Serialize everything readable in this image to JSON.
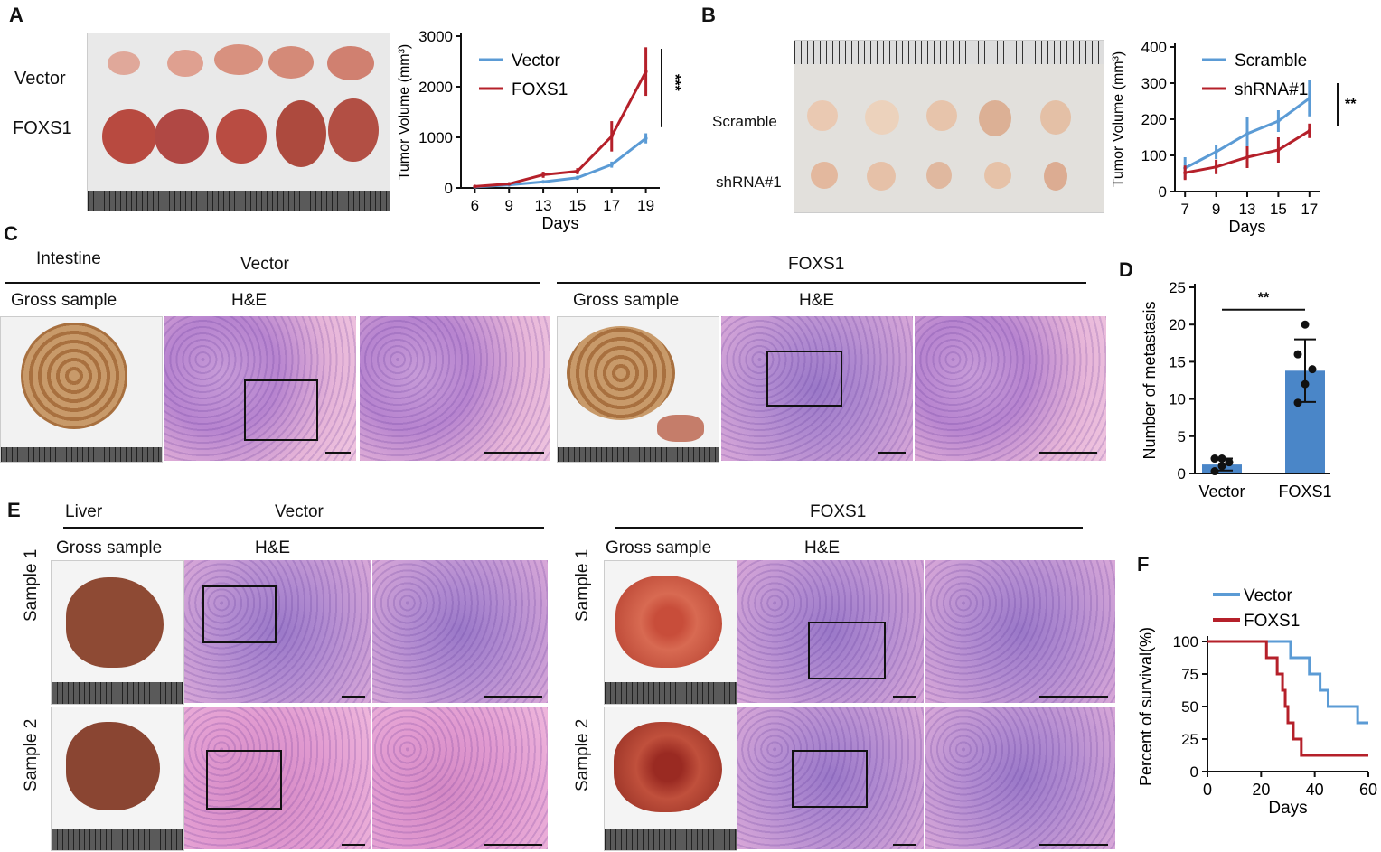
{
  "panels": {
    "A": {
      "label": "A",
      "row1": "Vector",
      "row2": "FOXS1"
    },
    "B": {
      "label": "B",
      "row1": "Scramble",
      "row2": "shRNA#1"
    },
    "C": {
      "label": "C",
      "organ": "Intestine",
      "group1": "Vector",
      "group2": "FOXS1",
      "gross": "Gross sample",
      "he": "H&E"
    },
    "D": {
      "label": "D"
    },
    "E": {
      "label": "E",
      "organ": "Liver",
      "group1": "Vector",
      "group2": "FOXS1",
      "gross": "Gross sample",
      "he": "H&E",
      "sample1": "Sample 1",
      "sample2": "Sample 2"
    },
    "F": {
      "label": "F"
    }
  },
  "colors": {
    "blue": "#5b9bd5",
    "red": "#b5202a",
    "bar_blue": "#4a86c8"
  },
  "chart_data": [
    {
      "id": "A",
      "type": "line",
      "ylabel": "Tumor Volume (mm³)",
      "xlabel": "Days",
      "x": [
        6,
        9,
        13,
        15,
        17,
        19
      ],
      "ylim": [
        0,
        3000
      ],
      "yticks": [
        0,
        1000,
        2000,
        3000
      ],
      "significance": "***",
      "series": [
        {
          "name": "Vector",
          "color": "#5b9bd5",
          "values": [
            20,
            60,
            120,
            200,
            460,
            980
          ],
          "err": [
            10,
            15,
            30,
            40,
            60,
            100
          ]
        },
        {
          "name": "FOXS1",
          "color": "#b5202a",
          "values": [
            30,
            80,
            260,
            330,
            1020,
            2300
          ],
          "err": [
            10,
            20,
            60,
            60,
            300,
            480
          ]
        }
      ]
    },
    {
      "id": "B",
      "type": "line",
      "ylabel": "Tumor Volume (mm³)",
      "xlabel": "Days",
      "x": [
        7,
        9,
        13,
        15,
        17
      ],
      "ylim": [
        0,
        400
      ],
      "yticks": [
        0,
        100,
        200,
        300,
        400
      ],
      "significance": "**",
      "series": [
        {
          "name": "Scramble",
          "color": "#5b9bd5",
          "values": [
            65,
            110,
            160,
            195,
            258
          ],
          "err": [
            30,
            20,
            45,
            30,
            50
          ]
        },
        {
          "name": "shRNA#1",
          "color": "#b5202a",
          "values": [
            52,
            68,
            95,
            115,
            168
          ],
          "err": [
            20,
            20,
            30,
            35,
            20
          ]
        }
      ]
    },
    {
      "id": "D",
      "type": "bar",
      "ylabel": "Number of  metastasis",
      "categories": [
        "Vector",
        "FOXS1"
      ],
      "values": [
        1.2,
        13.8
      ],
      "err": [
        0.8,
        4.2
      ],
      "points": [
        [
          0.3,
          1.0,
          1.5,
          2.0,
          2.0
        ],
        [
          9.5,
          12.0,
          14.0,
          16.0,
          20.0
        ]
      ],
      "ylim": [
        0,
        25
      ],
      "yticks": [
        0,
        5,
        10,
        15,
        20,
        25
      ],
      "significance": "**"
    },
    {
      "id": "F",
      "type": "line",
      "ylabel": "Percent of survival(%)",
      "xlabel": "Days",
      "xlim": [
        0,
        60
      ],
      "xticks": [
        0,
        20,
        40,
        60
      ],
      "ylim": [
        0,
        100
      ],
      "yticks": [
        0,
        25,
        50,
        75,
        100
      ],
      "series": [
        {
          "name": "Vector",
          "color": "#5b9bd5",
          "steps": [
            [
              0,
              100
            ],
            [
              31,
              100
            ],
            [
              31,
              87.5
            ],
            [
              38,
              87.5
            ],
            [
              38,
              75
            ],
            [
              42,
              75
            ],
            [
              42,
              62.5
            ],
            [
              45,
              62.5
            ],
            [
              45,
              50
            ],
            [
              56,
              50
            ],
            [
              56,
              37.5
            ],
            [
              60,
              37.5
            ]
          ]
        },
        {
          "name": "FOXS1",
          "color": "#b5202a",
          "steps": [
            [
              0,
              100
            ],
            [
              22,
              100
            ],
            [
              22,
              87.5
            ],
            [
              26,
              87.5
            ],
            [
              26,
              75
            ],
            [
              28,
              75
            ],
            [
              28,
              62.5
            ],
            [
              29,
              62.5
            ],
            [
              29,
              50
            ],
            [
              30,
              50
            ],
            [
              30,
              37.5
            ],
            [
              32,
              37.5
            ],
            [
              32,
              25
            ],
            [
              35,
              25
            ],
            [
              35,
              12.5
            ],
            [
              60,
              12.5
            ]
          ]
        }
      ]
    }
  ]
}
